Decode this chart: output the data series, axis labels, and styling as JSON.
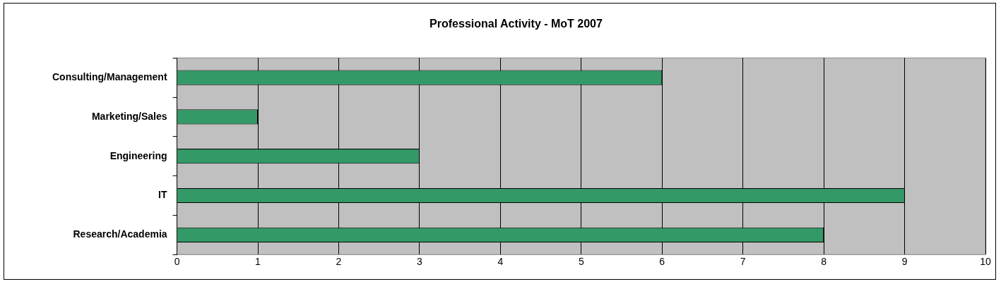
{
  "chart_data": {
    "type": "bar",
    "orientation": "horizontal",
    "title": "Professional Activity - MoT 2007",
    "categories": [
      "Consulting/Management",
      "Marketing/Sales",
      "Engineering",
      "IT",
      "Research/Academia"
    ],
    "values": [
      6,
      1,
      3,
      9,
      8
    ],
    "color": "#339966",
    "xlim": [
      0,
      10
    ],
    "xticks": [
      0,
      1,
      2,
      3,
      4,
      5,
      6,
      7,
      8,
      9,
      10
    ],
    "grid": "x",
    "legend": false
  }
}
